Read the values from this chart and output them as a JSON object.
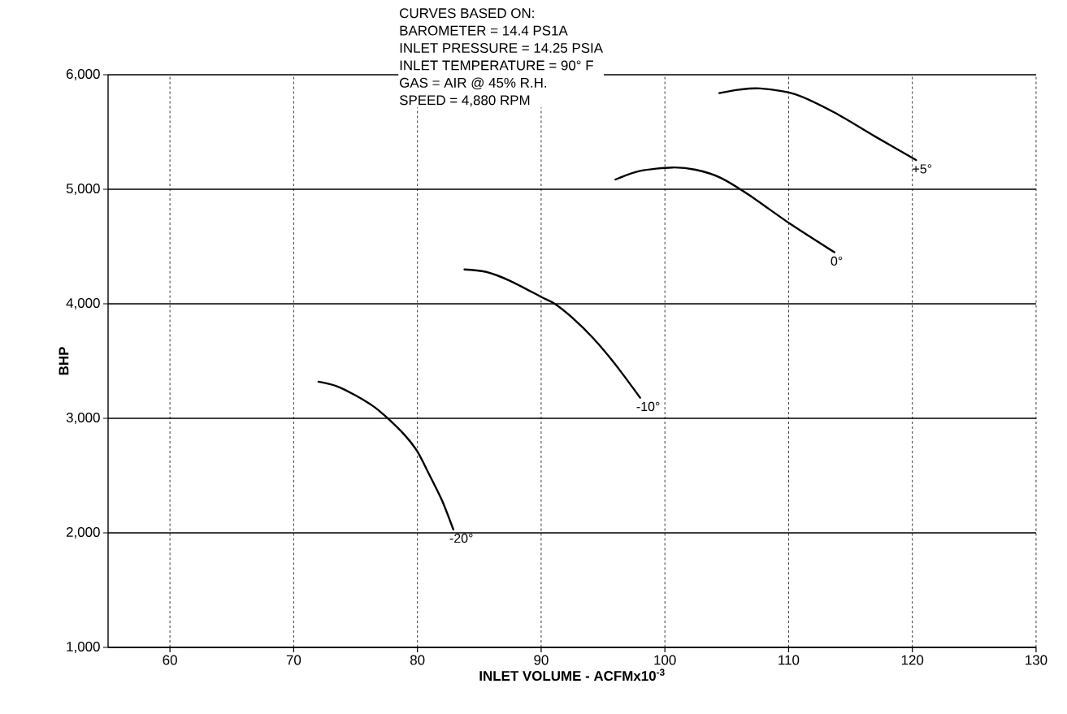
{
  "chart_data": {
    "type": "line",
    "xlabel": "INLET VOLUME - ACFMx10$^{-3}$",
    "ylabel": "BHP",
    "xlim": [
      55,
      130
    ],
    "ylim": [
      1000,
      6000
    ],
    "xticks": [
      60,
      70,
      80,
      90,
      100,
      110,
      120,
      130
    ],
    "yticks": [
      {
        "value": 1000,
        "label": "1,000"
      },
      {
        "value": 2000,
        "label": "2,000"
      },
      {
        "value": 3000,
        "label": "3,000"
      },
      {
        "value": 4000,
        "label": "4,000"
      },
      {
        "value": 5000,
        "label": "5,000"
      },
      {
        "value": 6000,
        "label": "6,000"
      }
    ],
    "grid": true,
    "marker": "none",
    "line_style": "solid",
    "series": [
      {
        "name": "-20°",
        "color": "#000000",
        "x": [
          72,
          73.5,
          75,
          76.5,
          77.6,
          79,
          80,
          81,
          82,
          82.9
        ],
        "values": [
          3320,
          3280,
          3200,
          3100,
          3000,
          2850,
          2710,
          2500,
          2280,
          2030
        ]
      },
      {
        "name": "-10°",
        "color": "#000000",
        "x": [
          83.8,
          85.5,
          87.5,
          90,
          91.1,
          92.5,
          94.2,
          96,
          98
        ],
        "values": [
          4300,
          4280,
          4200,
          4060,
          4000,
          3880,
          3700,
          3470,
          3180
        ]
      },
      {
        "name": "0°",
        "color": "#000000",
        "x": [
          96,
          98,
          100.6,
          102.5,
          104.5,
          106.8,
          110.1,
          113.7
        ],
        "values": [
          5085,
          5160,
          5190,
          5170,
          5100,
          4950,
          4700,
          4450
        ]
      },
      {
        "name": "+5°",
        "color": "#000000",
        "x": [
          104.4,
          106,
          107.7,
          110.5,
          113.7,
          117,
          120.3
        ],
        "values": [
          5840,
          5870,
          5880,
          5830,
          5670,
          5460,
          5255
        ]
      }
    ],
    "annotations": [
      "CURVES BASED ON:",
      "BAROMETER = 14.4 PS1A",
      "INLET PRESSURE = 14.25 PSIA",
      "INLET TEMPERATURE = 90° F",
      "GAS = AIR @ 45% R.H.",
      "SPEED = 4,880 RPM"
    ]
  }
}
